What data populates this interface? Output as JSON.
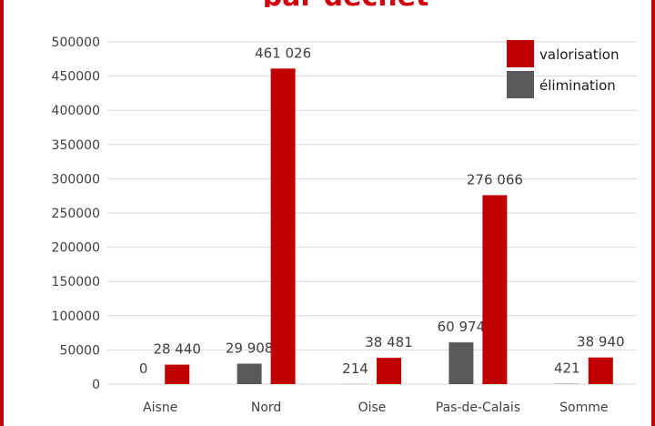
{
  "chart_data": {
    "type": "bar",
    "title": "par déchet",
    "categories": [
      "Aisne",
      "Nord",
      "Oise",
      "Pas-de-Calais",
      "Somme"
    ],
    "series": [
      {
        "name": "élimination",
        "color": "#595959",
        "values": [
          0,
          29908,
          214,
          60974,
          421
        ],
        "labels": [
          "0",
          "29 908",
          "214",
          "60 974",
          "421"
        ]
      },
      {
        "name": "valorisation",
        "color": "#c00000",
        "values": [
          28440,
          461026,
          38481,
          276066,
          38940
        ],
        "labels": [
          "28 440",
          "461 026",
          "38 481",
          "276 066",
          "38 940"
        ]
      }
    ],
    "legend_order": [
      "valorisation",
      "élimination"
    ],
    "ylim": [
      0,
      500000
    ],
    "yticks": [
      "0",
      "50000",
      "100000",
      "150000",
      "200000",
      "250000",
      "300000",
      "350000",
      "400000",
      "450000",
      "500000"
    ],
    "grid": true,
    "legend_position": "top-right"
  }
}
